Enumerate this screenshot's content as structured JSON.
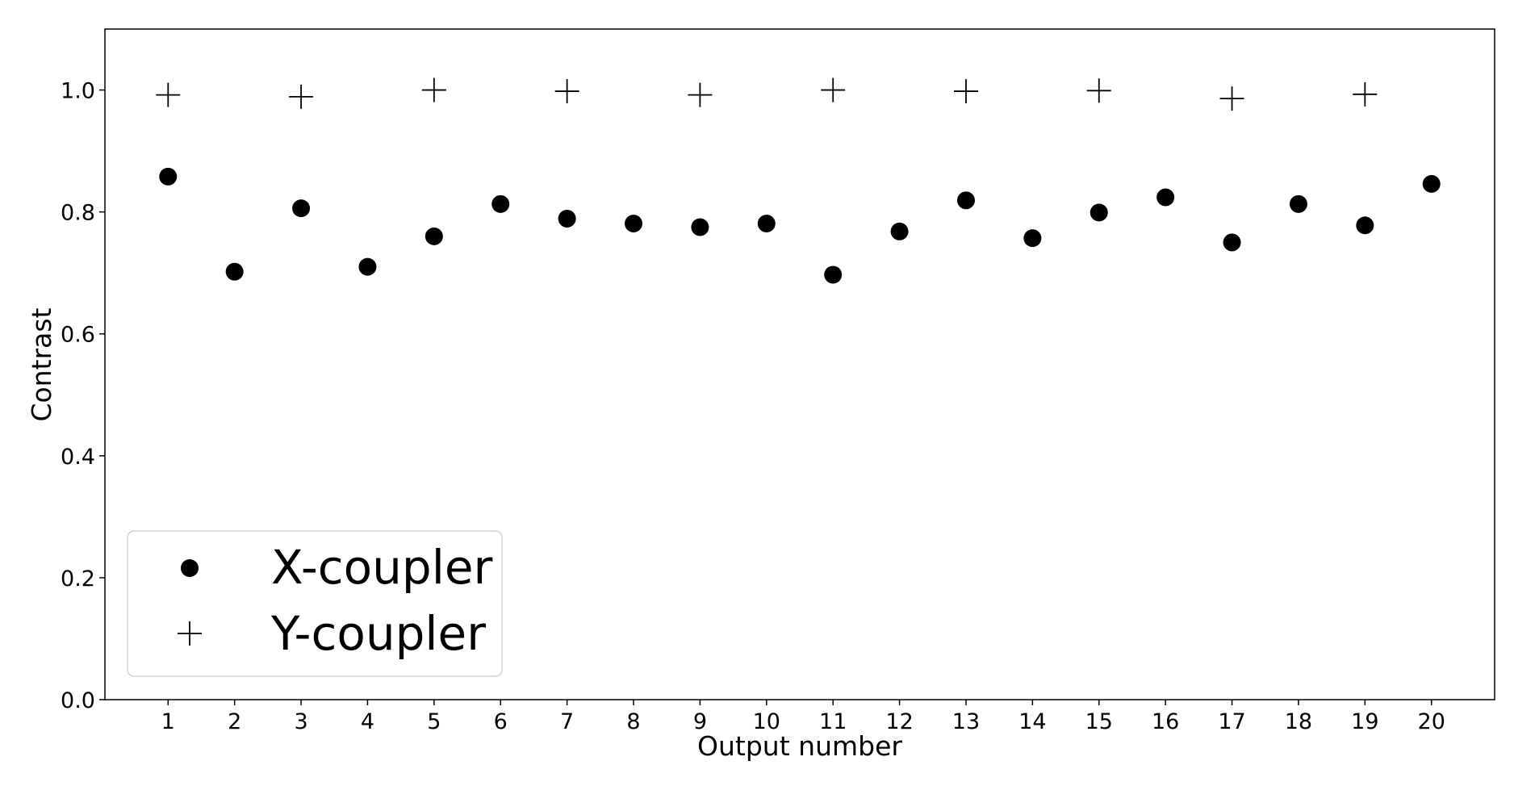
{
  "chart_data": {
    "type": "scatter",
    "xlabel": "Output number",
    "ylabel": "Contrast",
    "xlim": [
      0.05,
      20.95
    ],
    "ylim": [
      0.0,
      1.1
    ],
    "x_ticks": [
      1,
      2,
      3,
      4,
      5,
      6,
      7,
      8,
      9,
      10,
      11,
      12,
      13,
      14,
      15,
      16,
      17,
      18,
      19,
      20
    ],
    "y_ticks": [
      "0.0",
      "0.2",
      "0.4",
      "0.6",
      "0.8",
      "1.0"
    ],
    "grid": false,
    "legend_position": "lower-left",
    "series": [
      {
        "name": "X-coupler",
        "marker": "circle",
        "color": "#000000",
        "x": [
          1,
          2,
          3,
          4,
          5,
          6,
          7,
          8,
          9,
          10,
          11,
          12,
          13,
          14,
          15,
          16,
          17,
          18,
          19,
          20
        ],
        "y": [
          0.858,
          0.702,
          0.806,
          0.71,
          0.76,
          0.813,
          0.789,
          0.781,
          0.775,
          0.781,
          0.697,
          0.768,
          0.819,
          0.757,
          0.799,
          0.824,
          0.75,
          0.813,
          0.778,
          0.846
        ]
      },
      {
        "name": "Y-coupler",
        "marker": "plus",
        "color": "#000000",
        "x": [
          1,
          3,
          5,
          7,
          9,
          11,
          13,
          15,
          17,
          19
        ],
        "y": [
          0.992,
          0.989,
          1.0,
          0.998,
          0.992,
          1.0,
          0.998,
          0.999,
          0.986,
          0.993
        ]
      }
    ]
  }
}
